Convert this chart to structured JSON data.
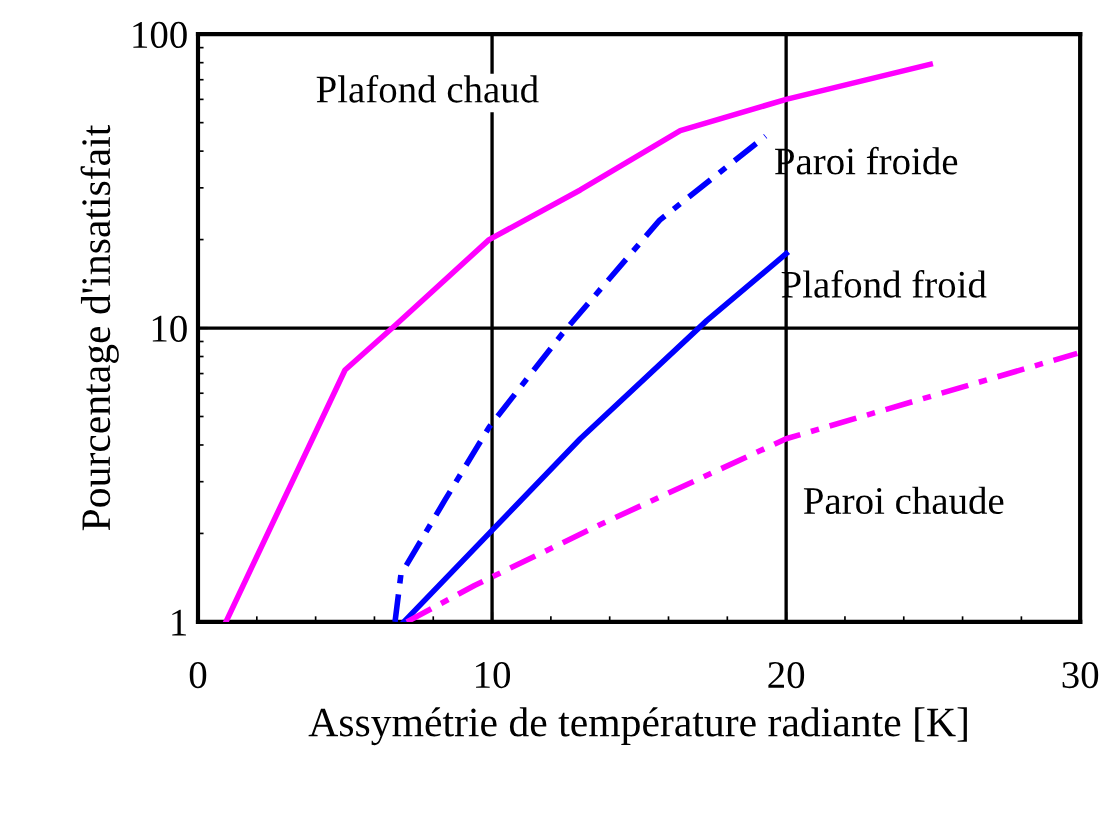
{
  "chart_data": {
    "type": "line",
    "xlabel": "Assymétrie de température radiante [K]",
    "ylabel": "Pourcentage d'insatisfait",
    "log": "y",
    "xlim": [
      0,
      30
    ],
    "xticks": [
      0,
      10,
      20,
      30
    ],
    "ylim": [
      1,
      100
    ],
    "yticks": [
      1,
      10,
      100
    ],
    "grid": true,
    "marker": "none",
    "series": [
      {
        "name": "Plafond chaud",
        "color": "#ff00ff",
        "line_style": "solid",
        "x": [
          0.95,
          5.0,
          6.7,
          9.9,
          13,
          16.4,
          20,
          24.9
        ],
        "values": [
          1,
          7.2,
          10.2,
          20,
          29.5,
          47,
          60,
          79
        ]
      },
      {
        "name": "Paroi froide",
        "color": "#0000ff",
        "line_style": "dashed",
        "x": [
          6.7,
          6.9,
          8.4,
          9.9,
          12.4,
          15.7,
          19.3
        ],
        "values": [
          1,
          1.45,
          2.6,
          4.6,
          9.6,
          23.3,
          45
        ]
      },
      {
        "name": "Plafond froid",
        "color": "#0000ff",
        "line_style": "solid",
        "x": [
          7.0,
          9.9,
          13,
          17.3,
          20
        ],
        "values": [
          1,
          2.0,
          4.2,
          10.6,
          17.9
        ]
      },
      {
        "name": "Paroi chaude",
        "color": "#ff00ff",
        "line_style": "dashed",
        "x": [
          7.1,
          9.4,
          13.7,
          20,
          29.9
        ],
        "values": [
          1,
          1.33,
          2.15,
          4.2,
          8.2
        ]
      }
    ]
  }
}
